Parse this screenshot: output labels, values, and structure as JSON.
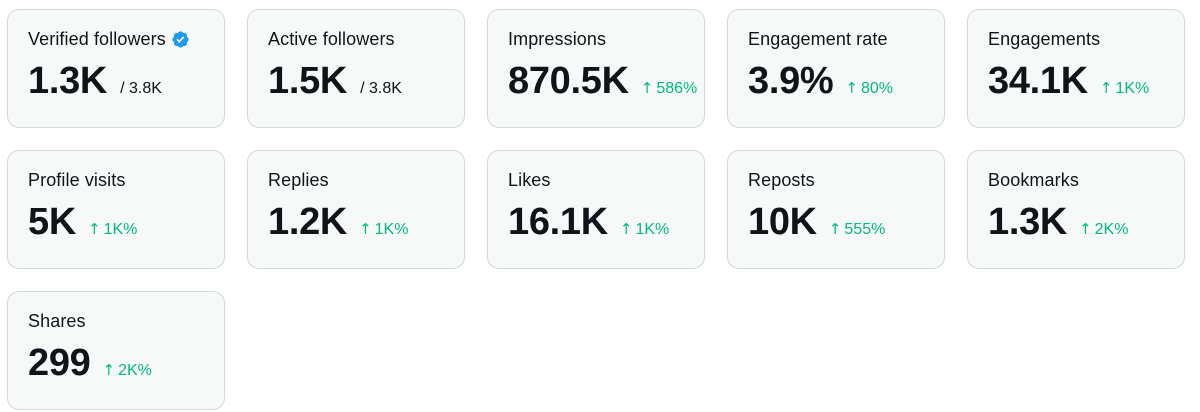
{
  "colors": {
    "card_background": "#f7f9f9",
    "card_border": "#cfd9de",
    "text": "#0f1419",
    "positive_delta": "#00ba7c",
    "verified_badge": "#1d9bf0"
  },
  "cards": [
    {
      "label": "Verified followers",
      "value": "1.3K",
      "suffix": "/ 3.8K",
      "verified_icon": "verified-badge-icon"
    },
    {
      "label": "Active followers",
      "value": "1.5K",
      "suffix": "/ 3.8K"
    },
    {
      "label": "Impressions",
      "value": "870.5K",
      "delta": "586%",
      "delta_icon": "arrow-up-icon"
    },
    {
      "label": "Engagement rate",
      "value": "3.9%",
      "delta": "80%",
      "delta_icon": "arrow-up-icon"
    },
    {
      "label": "Engagements",
      "value": "34.1K",
      "delta": "1K%",
      "delta_icon": "arrow-up-icon"
    },
    {
      "label": "Profile visits",
      "value": "5K",
      "delta": "1K%",
      "delta_icon": "arrow-up-icon"
    },
    {
      "label": "Replies",
      "value": "1.2K",
      "delta": "1K%",
      "delta_icon": "arrow-up-icon"
    },
    {
      "label": "Likes",
      "value": "16.1K",
      "delta": "1K%",
      "delta_icon": "arrow-up-icon"
    },
    {
      "label": "Reposts",
      "value": "10K",
      "delta": "555%",
      "delta_icon": "arrow-up-icon"
    },
    {
      "label": "Bookmarks",
      "value": "1.3K",
      "delta": "2K%",
      "delta_icon": "arrow-up-icon"
    },
    {
      "label": "Shares",
      "value": "299",
      "delta": "2K%",
      "delta_icon": "arrow-up-icon"
    }
  ]
}
